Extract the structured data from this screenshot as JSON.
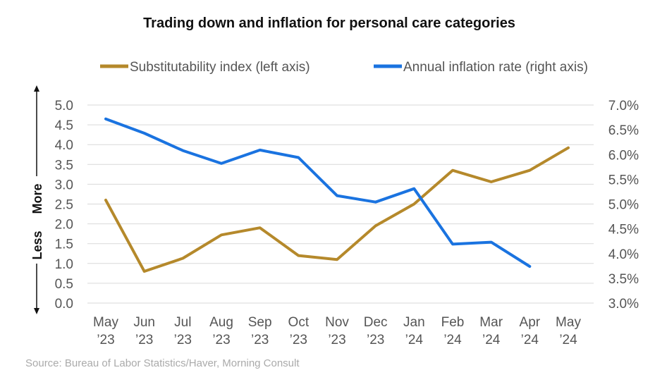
{
  "chart_data": {
    "type": "line",
    "title": "Trading down and inflation for personal care categories",
    "categories": [
      [
        "May",
        "’23"
      ],
      [
        "Jun",
        "’23"
      ],
      [
        "Jul",
        "’23"
      ],
      [
        "Aug",
        "’23"
      ],
      [
        "Sep",
        "’23"
      ],
      [
        "Oct",
        "’23"
      ],
      [
        "Nov",
        "’23"
      ],
      [
        "Dec",
        "’23"
      ],
      [
        "Jan",
        "’24"
      ],
      [
        "Feb",
        "’24"
      ],
      [
        "Mar",
        "’24"
      ],
      [
        "Apr",
        "’24"
      ],
      [
        "May",
        "’24"
      ]
    ],
    "left_axis": {
      "ylim": [
        0,
        5
      ],
      "ticks": [
        "0.0",
        "0.5",
        "1.0",
        "1.5",
        "2.0",
        "2.5",
        "3.0",
        "3.5",
        "4.0",
        "4.5",
        "5.0"
      ],
      "label_less": "Less",
      "label_more": "More"
    },
    "right_axis": {
      "ylim": [
        3.0,
        7.0
      ],
      "ticks": [
        "3.0%",
        "3.5%",
        "4.0%",
        "4.5%",
        "5.0%",
        "5.5%",
        "6.0%",
        "6.5%",
        "7.0%"
      ]
    },
    "series": [
      {
        "name": "Substitutability index (left axis)",
        "axis": "left",
        "color": "#b5892b",
        "values": [
          2.6,
          0.8,
          1.13,
          1.72,
          1.9,
          1.2,
          1.1,
          1.95,
          2.5,
          3.35,
          3.06,
          3.35,
          3.92
        ]
      },
      {
        "name": "Annual inflation rate (right axis)",
        "axis": "right",
        "color": "#1a73e0",
        "values": [
          6.72,
          6.43,
          6.08,
          5.82,
          6.09,
          5.94,
          5.17,
          5.04,
          5.31,
          4.19,
          4.23,
          3.74,
          null
        ]
      }
    ],
    "grid": true,
    "legend_position": "top"
  },
  "source": "Source: Bureau of Labor Statistics/Haver, Morning Consult"
}
